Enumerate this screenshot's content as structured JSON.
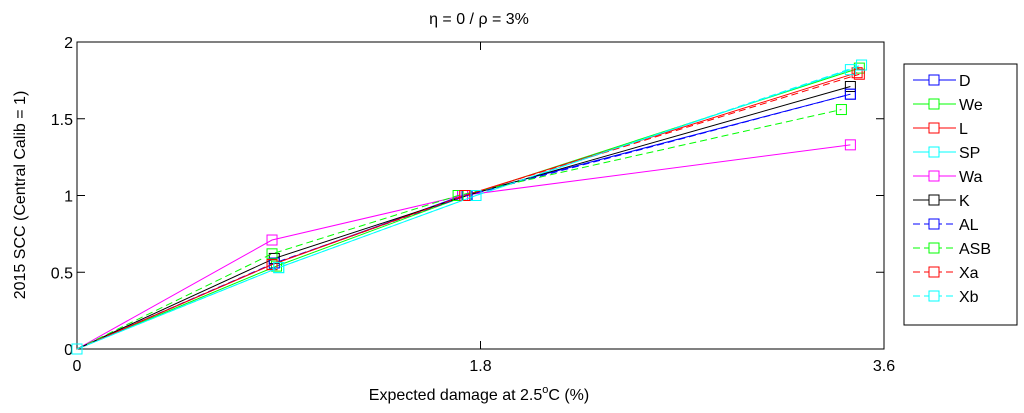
{
  "chart_data": {
    "type": "line",
    "title": "η = 0 / ρ = 3%",
    "xlabel_main": "Expected damage at 2.5",
    "xlabel_sup": "o",
    "xlabel_tail": "C (%)",
    "ylabel": "2015 SCC (Central Calib = 1)",
    "xlim": [
      0,
      3.6
    ],
    "ylim": [
      0,
      2
    ],
    "x_ticks": [
      0,
      1.8,
      3.6
    ],
    "x_tick_labels": [
      "0",
      "1.8",
      "3.6"
    ],
    "y_ticks": [
      0,
      0.5,
      1,
      1.5,
      2
    ],
    "y_tick_labels": [
      "0",
      "0.5",
      "1",
      "1.5",
      "2"
    ],
    "grid": false,
    "legend_position": "outside-right",
    "series": [
      {
        "name": "D",
        "color": "#0000ff",
        "dash": "solid",
        "x": [
          0,
          0.87,
          1.72,
          3.45
        ],
        "y": [
          0,
          0.55,
          1.0,
          1.66
        ]
      },
      {
        "name": "We",
        "color": "#00ff00",
        "dash": "solid",
        "x": [
          0,
          0.89,
          1.74,
          3.49
        ],
        "y": [
          0,
          0.54,
          1.0,
          1.83
        ]
      },
      {
        "name": "L",
        "color": "#ff0000",
        "dash": "solid",
        "x": [
          0,
          0.87,
          1.73,
          3.48
        ],
        "y": [
          0,
          0.55,
          1.0,
          1.8
        ]
      },
      {
        "name": "SP",
        "color": "#00ffff",
        "dash": "solid",
        "x": [
          0,
          0.9,
          1.78,
          3.45
        ],
        "y": [
          0,
          0.53,
          1.0,
          1.82
        ]
      },
      {
        "name": "Wa",
        "color": "#ff00ff",
        "dash": "solid",
        "x": [
          0,
          0.87,
          1.72,
          3.45
        ],
        "y": [
          0,
          0.71,
          1.0,
          1.33
        ]
      },
      {
        "name": "K",
        "color": "#000000",
        "dash": "solid",
        "x": [
          0,
          0.88,
          1.74,
          3.45
        ],
        "y": [
          0,
          0.59,
          1.0,
          1.71
        ]
      },
      {
        "name": "AL",
        "color": "#0000ff",
        "dash": "dashed",
        "x": [
          0,
          0.88,
          1.74,
          3.45
        ],
        "y": [
          0,
          0.56,
          1.0,
          1.66
        ]
      },
      {
        "name": "ASB",
        "color": "#00ff00",
        "dash": "dashed",
        "x": [
          0,
          0.87,
          1.7,
          3.41
        ],
        "y": [
          0,
          0.62,
          1.0,
          1.56
        ]
      },
      {
        "name": "Xa",
        "color": "#ff0000",
        "dash": "dashed",
        "x": [
          0,
          0.87,
          1.73,
          3.49
        ],
        "y": [
          0,
          0.55,
          1.0,
          1.79
        ]
      },
      {
        "name": "Xb",
        "color": "#00ffff",
        "dash": "dashed",
        "x": [
          0,
          0.9,
          1.78,
          3.5
        ],
        "y": [
          0,
          0.53,
          1.0,
          1.85
        ]
      }
    ]
  }
}
